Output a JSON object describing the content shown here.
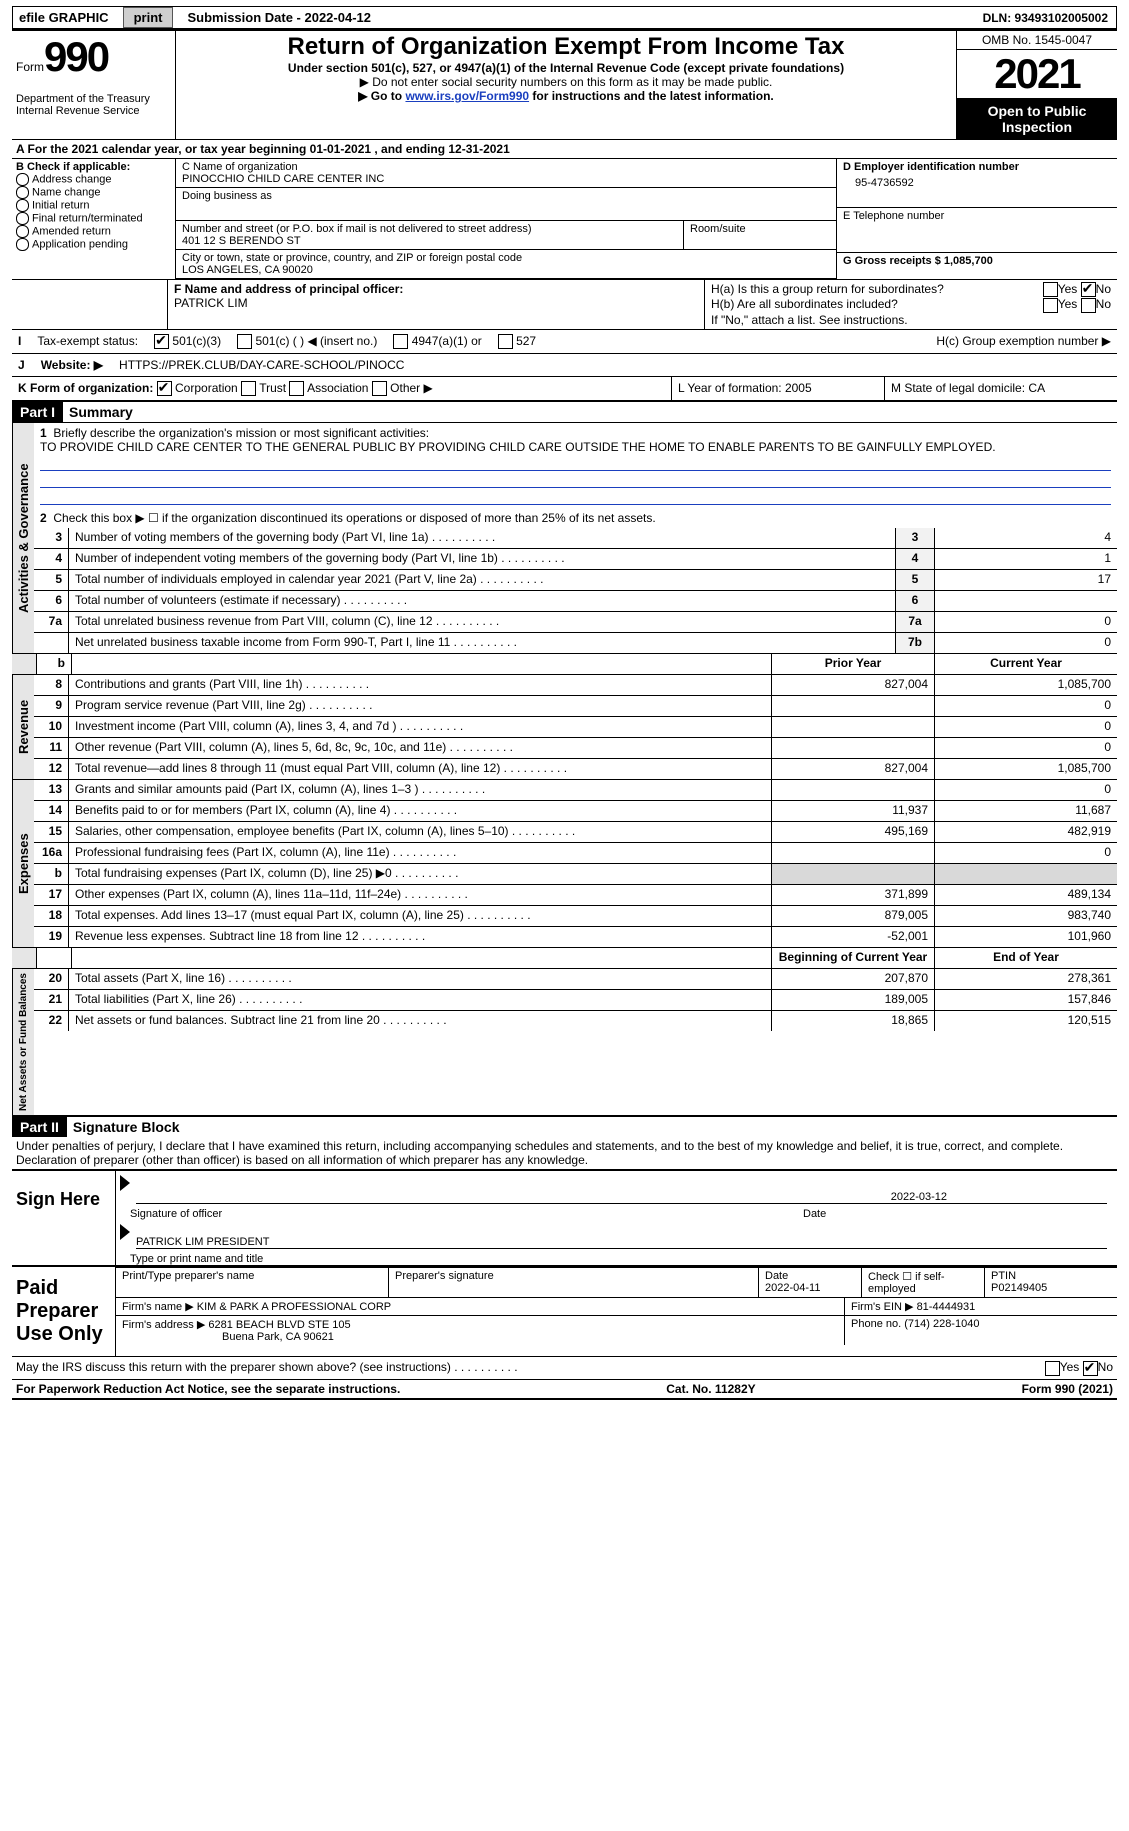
{
  "top": {
    "efile": "efile GRAPHIC",
    "print": "print",
    "subdate_label": "Submission Date - 2022-04-12",
    "dln_label": "DLN: 93493102005002"
  },
  "header": {
    "form_label": "Form",
    "form_num": "990",
    "dept": "Department of the Treasury",
    "irs": "Internal Revenue Service",
    "title": "Return of Organization Exempt From Income Tax",
    "subtitle": "Under section 501(c), 527, or 4947(a)(1) of the Internal Revenue Code (except private foundations)",
    "note1": "▶ Do not enter social security numbers on this form as it may be made public.",
    "note2_pre": "▶ Go to ",
    "note2_link": "www.irs.gov/Form990",
    "note2_post": " for instructions and the latest information.",
    "omb": "OMB No. 1545-0047",
    "year": "2021",
    "public": "Open to Public Inspection"
  },
  "rowA": "A For the 2021 calendar year, or tax year beginning 01-01-2021    , and ending 12-31-2021",
  "colB": {
    "hdr": "B Check if applicable:",
    "items": [
      "Address change",
      "Name change",
      "Initial return",
      "Final return/terminated",
      "Amended return",
      "Application pending"
    ]
  },
  "colC": {
    "name_lbl": "C Name of organization",
    "name": "PINOCCHIO CHILD CARE CENTER INC",
    "dba_lbl": "Doing business as",
    "addr_lbl": "Number and street (or P.O. box if mail is not delivered to street address)",
    "room_lbl": "Room/suite",
    "addr": "401 12 S BERENDO ST",
    "city_lbl": "City or town, state or province, country, and ZIP or foreign postal code",
    "city": "LOS ANGELES, CA  90020"
  },
  "colD": {
    "ein_lbl": "D Employer identification number",
    "ein": "95-4736592",
    "tel_lbl": "E Telephone number",
    "gross_lbl": "G Gross receipts $ 1,085,700"
  },
  "rowF": {
    "lbl": "F Name and address of principal officer:",
    "name": "PATRICK LIM"
  },
  "rowH": {
    "a": "H(a)  Is this a group return for subordinates?",
    "b": "H(b)  Are all subordinates included?",
    "note": "If \"No,\" attach a list. See instructions.",
    "c": "H(c)  Group exemption number ▶",
    "yes": "Yes",
    "no": "No"
  },
  "rowI": {
    "lbl": "Tax-exempt status:",
    "o1": "501(c)(3)",
    "o2": "501(c) (  ) ◀ (insert no.)",
    "o3": "4947(a)(1) or",
    "o4": "527"
  },
  "rowJ": {
    "lbl": "Website: ▶",
    "val": "HTTPS://PREK.CLUB/DAY-CARE-SCHOOL/PINOCC"
  },
  "rowK": {
    "lbl": "K Form of organization:",
    "o1": "Corporation",
    "o2": "Trust",
    "o3": "Association",
    "o4": "Other ▶"
  },
  "rowL": "L Year of formation: 2005",
  "rowM": "M State of legal domicile: CA",
  "part1": {
    "num": "Part I",
    "title": "Summary",
    "l1_label": "Briefly describe the organization's mission or most significant activities:",
    "l1_text": "TO PROVIDE CHILD CARE CENTER TO THE GENERAL PUBLIC BY PROVIDING CHILD CARE OUTSIDE THE HOME TO ENABLE PARENTS TO BE GAINFULLY EMPLOYED.",
    "l2": "Check this box ▶ ☐  if the organization discontinued its operations or disposed of more than 25% of its net assets.",
    "lines_ag": [
      {
        "n": "3",
        "t": "Number of voting members of the governing body (Part VI, line 1a)",
        "box": "3",
        "v": "4"
      },
      {
        "n": "4",
        "t": "Number of independent voting members of the governing body (Part VI, line 1b)",
        "box": "4",
        "v": "1"
      },
      {
        "n": "5",
        "t": "Total number of individuals employed in calendar year 2021 (Part V, line 2a)",
        "box": "5",
        "v": "17"
      },
      {
        "n": "6",
        "t": "Total number of volunteers (estimate if necessary)",
        "box": "6",
        "v": ""
      },
      {
        "n": "7a",
        "t": "Total unrelated business revenue from Part VIII, column (C), line 12",
        "box": "7a",
        "v": "0"
      },
      {
        "n": "",
        "t": "Net unrelated business taxable income from Form 990-T, Part I, line 11",
        "box": "7b",
        "v": "0"
      }
    ],
    "hdr_prior": "Prior Year",
    "hdr_curr": "Current Year",
    "rev": [
      {
        "n": "8",
        "t": "Contributions and grants (Part VIII, line 1h)",
        "p": "827,004",
        "c": "1,085,700"
      },
      {
        "n": "9",
        "t": "Program service revenue (Part VIII, line 2g)",
        "p": "",
        "c": "0"
      },
      {
        "n": "10",
        "t": "Investment income (Part VIII, column (A), lines 3, 4, and 7d )",
        "p": "",
        "c": "0"
      },
      {
        "n": "11",
        "t": "Other revenue (Part VIII, column (A), lines 5, 6d, 8c, 9c, 10c, and 11e)",
        "p": "",
        "c": "0"
      },
      {
        "n": "12",
        "t": "Total revenue—add lines 8 through 11 (must equal Part VIII, column (A), line 12)",
        "p": "827,004",
        "c": "1,085,700"
      }
    ],
    "exp": [
      {
        "n": "13",
        "t": "Grants and similar amounts paid (Part IX, column (A), lines 1–3 )",
        "p": "",
        "c": "0"
      },
      {
        "n": "14",
        "t": "Benefits paid to or for members (Part IX, column (A), line 4)",
        "p": "11,937",
        "c": "11,687"
      },
      {
        "n": "15",
        "t": "Salaries, other compensation, employee benefits (Part IX, column (A), lines 5–10)",
        "p": "495,169",
        "c": "482,919"
      },
      {
        "n": "16a",
        "t": "Professional fundraising fees (Part IX, column (A), line 11e)",
        "p": "",
        "c": "0"
      },
      {
        "n": "b",
        "t": "Total fundraising expenses (Part IX, column (D), line 25) ▶0",
        "p": "GRAY",
        "c": "GRAY"
      },
      {
        "n": "17",
        "t": "Other expenses (Part IX, column (A), lines 11a–11d, 11f–24e)",
        "p": "371,899",
        "c": "489,134"
      },
      {
        "n": "18",
        "t": "Total expenses. Add lines 13–17 (must equal Part IX, column (A), line 25)",
        "p": "879,005",
        "c": "983,740"
      },
      {
        "n": "19",
        "t": "Revenue less expenses. Subtract line 18 from line 12",
        "p": "-52,001",
        "c": "101,960"
      }
    ],
    "hdr_begin": "Beginning of Current Year",
    "hdr_end": "End of Year",
    "net": [
      {
        "n": "20",
        "t": "Total assets (Part X, line 16)",
        "p": "207,870",
        "c": "278,361"
      },
      {
        "n": "21",
        "t": "Total liabilities (Part X, line 26)",
        "p": "189,005",
        "c": "157,846"
      },
      {
        "n": "22",
        "t": "Net assets or fund balances. Subtract line 21 from line 20",
        "p": "18,865",
        "c": "120,515"
      }
    ],
    "sec_ag": "Activities & Governance",
    "sec_rev": "Revenue",
    "sec_exp": "Expenses",
    "sec_net": "Net Assets or Fund Balances"
  },
  "part2": {
    "num": "Part II",
    "title": "Signature Block",
    "decl": "Under penalties of perjury, I declare that I have examined this return, including accompanying schedules and statements, and to the best of my knowledge and belief, it is true, correct, and complete. Declaration of preparer (other than officer) is based on all information of which preparer has any knowledge.",
    "sign": "Sign Here",
    "sig_officer": "Signature of officer",
    "sig_date": "2022-03-12",
    "sig_date_lbl": "Date",
    "sig_name": "PATRICK LIM PRESIDENT",
    "sig_name_lbl": "Type or print name and title",
    "paid": "Paid Preparer Use Only",
    "prep_name_lbl": "Print/Type preparer's name",
    "prep_sig_lbl": "Preparer's signature",
    "prep_date_lbl": "Date",
    "prep_date": "2022-04-11",
    "prep_check_lbl": "Check ☐ if self-employed",
    "ptin_lbl": "PTIN",
    "ptin": "P02149405",
    "firm_name_lbl": "Firm's name   ▶",
    "firm_name": "KIM & PARK A PROFESSIONAL CORP",
    "firm_ein_lbl": "Firm's EIN ▶",
    "firm_ein": "81-4444931",
    "firm_addr_lbl": "Firm's address ▶",
    "firm_addr1": "6281 BEACH BLVD STE 105",
    "firm_addr2": "Buena Park, CA  90621",
    "phone_lbl": "Phone no.",
    "phone": "(714) 228-1040",
    "discuss": "May the IRS discuss this return with the preparer shown above? (see instructions)"
  },
  "foot": {
    "left": "For Paperwork Reduction Act Notice, see the separate instructions.",
    "mid": "Cat. No. 11282Y",
    "right": "Form 990 (2021)"
  },
  "colors": {
    "link": "#1a3fbf",
    "gray": "#d9d9d9",
    "lightgray": "#e6e6e6"
  }
}
